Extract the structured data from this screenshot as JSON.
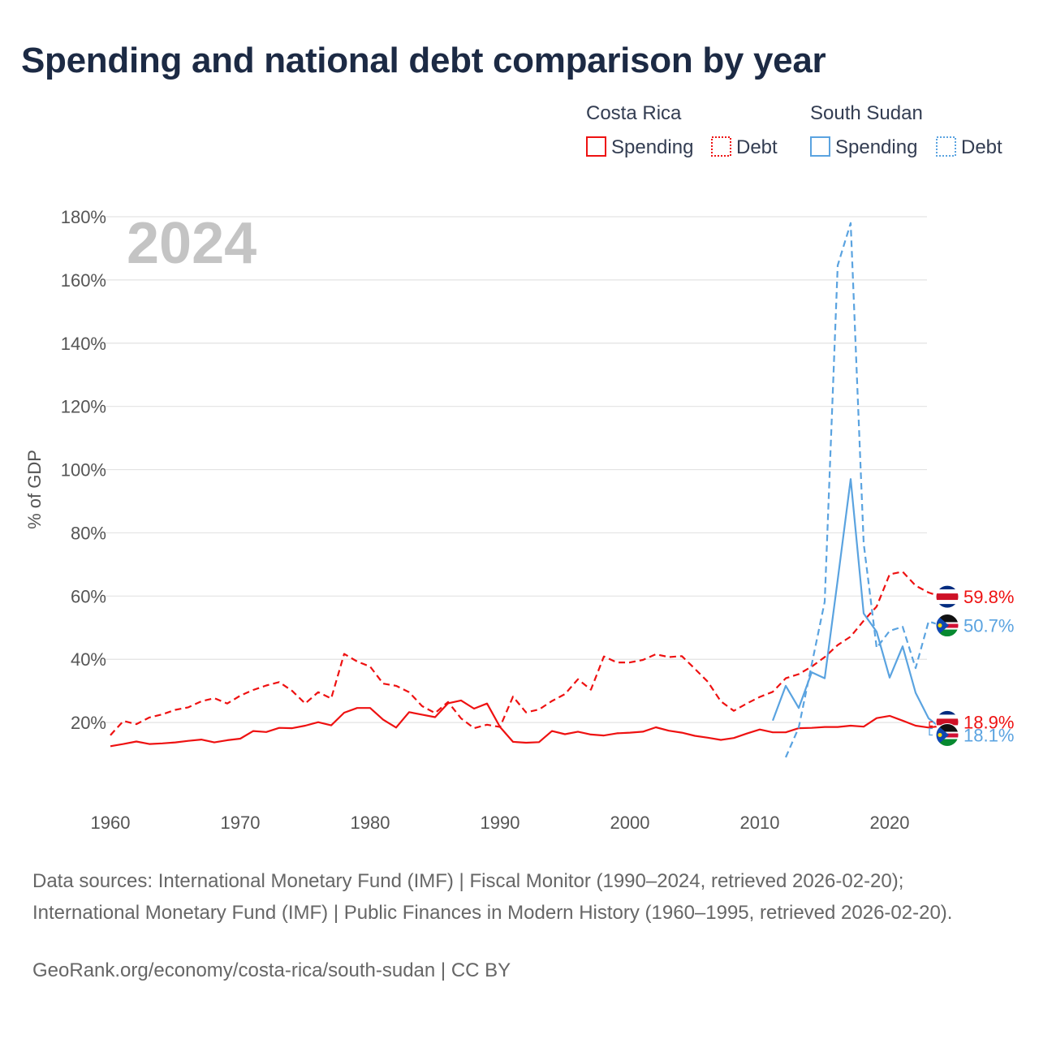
{
  "title": "Spending and national debt comparison by year",
  "source_text": "Data sources: International Monetary Fund (IMF) | Fiscal Monitor (1990–2024, retrieved 2026-02-20); International Monetary Fund (IMF) | Public Finances in Modern History (1960–1995, retrieved 2026-02-20).",
  "credit_text": "GeoRank.org/economy/costa-rica/south-sudan | CC BY",
  "chart_data": {
    "type": "line",
    "title": "Spending and national debt comparison by year",
    "year_overlay": "2024",
    "xlabel": "",
    "ylabel": "% of GDP",
    "xlim": [
      1960,
      2024
    ],
    "ylim": [
      0,
      180
    ],
    "x_ticks": [
      "1960",
      "1970",
      "1980",
      "1990",
      "2000",
      "2010",
      "2020"
    ],
    "y_ticks": [
      "20%",
      "40%",
      "60%",
      "80%",
      "100%",
      "120%",
      "140%",
      "160%",
      "180%"
    ],
    "legend": {
      "groups": [
        {
          "country": "Costa Rica",
          "spending": "Spending",
          "debt": "Debt"
        },
        {
          "country": "South Sudan",
          "spending": "Spending",
          "debt": "Debt"
        }
      ]
    },
    "colors": {
      "costa_rica": "#ee1111",
      "south_sudan": "#5aa3e0"
    },
    "series": [
      {
        "name": "Costa Rica Spending",
        "country": "Costa Rica",
        "style": "solid",
        "color": "#ee1111",
        "x": [
          1960,
          1961,
          1962,
          1963,
          1964,
          1965,
          1966,
          1967,
          1968,
          1969,
          1970,
          1971,
          1972,
          1973,
          1974,
          1975,
          1976,
          1977,
          1978,
          1979,
          1980,
          1981,
          1982,
          1983,
          1984,
          1985,
          1986,
          1987,
          1988,
          1989,
          1990,
          1991,
          1992,
          1993,
          1994,
          1995,
          1996,
          1997,
          1998,
          1999,
          2000,
          2001,
          2002,
          2003,
          2004,
          2005,
          2006,
          2007,
          2008,
          2009,
          2010,
          2011,
          2012,
          2013,
          2014,
          2015,
          2016,
          2017,
          2018,
          2019,
          2020,
          2021,
          2022,
          2023,
          2024
        ],
        "values": [
          12.5,
          13.2,
          14.0,
          13.2,
          13.4,
          13.7,
          14.2,
          14.6,
          13.7,
          14.4,
          14.9,
          17.3,
          17.0,
          18.3,
          18.2,
          19.0,
          20.1,
          19.1,
          23.1,
          24.6,
          24.6,
          20.9,
          18.4,
          23.3,
          22.5,
          21.7,
          26.1,
          27.0,
          24.4,
          26.0,
          18.6,
          13.9,
          13.6,
          13.8,
          17.3,
          16.3,
          17.1,
          16.2,
          15.9,
          16.6,
          16.8,
          17.1,
          18.5,
          17.4,
          16.8,
          15.8,
          15.2,
          14.5,
          15.1,
          16.5,
          17.8,
          16.9,
          16.9,
          18.2,
          18.3,
          18.6,
          18.6,
          19.0,
          18.7,
          21.4,
          22.1,
          20.6,
          19.0,
          18.4,
          18.9
        ],
        "end_label": "18.9%"
      },
      {
        "name": "Costa Rica Debt",
        "country": "Costa Rica",
        "style": "dashed",
        "color": "#ee1111",
        "x": [
          1960,
          1961,
          1962,
          1963,
          1964,
          1965,
          1966,
          1967,
          1968,
          1969,
          1970,
          1971,
          1972,
          1973,
          1974,
          1975,
          1976,
          1977,
          1978,
          1979,
          1980,
          1981,
          1982,
          1983,
          1984,
          1985,
          1986,
          1987,
          1988,
          1989,
          1990,
          1991,
          1992,
          1993,
          1994,
          1995,
          1996,
          1997,
          1998,
          1999,
          2000,
          2001,
          2002,
          2003,
          2004,
          2005,
          2006,
          2007,
          2008,
          2009,
          2010,
          2011,
          2012,
          2013,
          2014,
          2015,
          2016,
          2017,
          2018,
          2019,
          2020,
          2021,
          2022,
          2023,
          2024
        ],
        "values": [
          16.0,
          20.5,
          19.5,
          21.6,
          22.6,
          24.0,
          24.8,
          26.7,
          27.7,
          26.0,
          28.5,
          30.3,
          31.7,
          32.8,
          30.0,
          26.0,
          29.6,
          27.6,
          41.7,
          39.3,
          37.7,
          32.3,
          31.6,
          29.6,
          25.2,
          23.0,
          26.5,
          21.3,
          18.2,
          19.3,
          18.6,
          28.2,
          23.2,
          24.1,
          26.8,
          29.0,
          33.7,
          30.4,
          40.9,
          39.0,
          39.0,
          39.8,
          41.6,
          40.7,
          41.0,
          37.0,
          32.9,
          26.7,
          23.7,
          26.0,
          28.1,
          29.7,
          34.0,
          35.3,
          37.7,
          40.7,
          44.5,
          47.2,
          52.2,
          56.7,
          66.9,
          67.7,
          63.3,
          61.1,
          59.8
        ],
        "end_label": "59.8%"
      },
      {
        "name": "South Sudan Spending",
        "country": "South Sudan",
        "style": "solid",
        "color": "#5aa3e0",
        "x": [
          2011,
          2012,
          2013,
          2014,
          2015,
          2016,
          2017,
          2018,
          2019,
          2020,
          2021,
          2022,
          2023,
          2024
        ],
        "values": [
          20.6,
          31.6,
          24.6,
          35.9,
          34.0,
          65.1,
          97.0,
          54.5,
          48.7,
          34.2,
          44.1,
          29.4,
          21.3,
          18.1
        ],
        "end_label": "18.1%"
      },
      {
        "name": "South Sudan Debt",
        "country": "South Sudan",
        "style": "dashed",
        "color": "#5aa3e0",
        "x": [
          2012,
          2013,
          2014,
          2015,
          2016,
          2017,
          2018,
          2019,
          2020,
          2021,
          2022,
          2023,
          2024
        ],
        "values": [
          9.0,
          18.4,
          38.4,
          58.2,
          164.6,
          178.0,
          76.7,
          43.6,
          49.0,
          50.3,
          37.2,
          52.0,
          50.7
        ],
        "end_label": "50.7%"
      }
    ]
  }
}
